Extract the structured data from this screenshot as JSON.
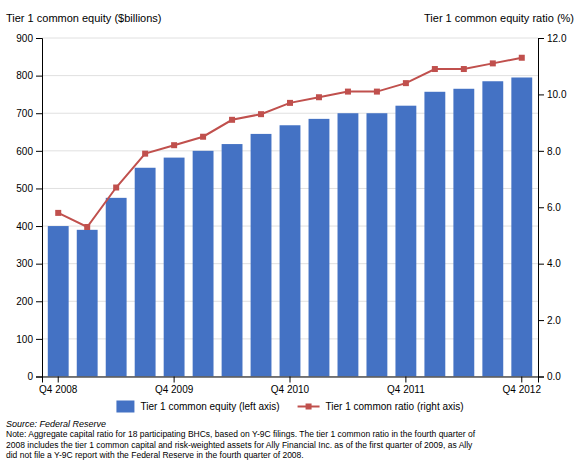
{
  "chart_data": {
    "type": "bar",
    "ylabel": "Tier 1 common equity ($billions)",
    "y2label": "Tier 1 common equity ratio (%)",
    "categories": [
      "Q4 2008",
      null,
      null,
      null,
      "Q4 2009",
      null,
      null,
      null,
      "Q4 2010",
      null,
      null,
      null,
      "Q4 2011",
      null,
      null,
      null,
      "Q4 2012"
    ],
    "series": [
      {
        "name": "Tier 1 common equity (left axis)",
        "type": "bar",
        "color": "#4472C4",
        "values": [
          400,
          390,
          475,
          555,
          582,
          600,
          618,
          645,
          668,
          685,
          700,
          700,
          720,
          757,
          765,
          785,
          795
        ]
      },
      {
        "name": "Tier 1 common ratio (right axis)",
        "type": "line",
        "axis": "y2",
        "color": "#C0504D",
        "marker": "square",
        "values": [
          5.8,
          5.3,
          6.7,
          7.9,
          8.2,
          8.5,
          9.1,
          9.3,
          9.7,
          9.9,
          10.1,
          10.1,
          10.4,
          10.9,
          10.9,
          11.1,
          11.3
        ]
      }
    ],
    "ylim": [
      0,
      900
    ],
    "yticks": [
      0,
      100,
      200,
      300,
      400,
      500,
      600,
      700,
      800,
      900
    ],
    "y2lim": [
      0,
      12.0
    ],
    "y2ticks": [
      {
        "value": 0.0,
        "label": "0.0"
      },
      {
        "value": 2.0,
        "label": "2.0"
      },
      {
        "value": 4.0,
        "label": "4.0"
      },
      {
        "value": 6.0,
        "label": "6.0"
      },
      {
        "value": 8.0,
        "label": "8.0"
      },
      {
        "value": 10.0,
        "label": "10.0"
      },
      {
        "value": 12.0,
        "label": "12.0"
      }
    ],
    "grid": true,
    "legend": "bottom",
    "source": "Source: Federal Reserve",
    "note": "Note: Aggregate capital ratio for 18 participating BHCs, based on Y-9C filings.  The tier 1 common ratio in the fourth quarter of\n2008 includes the tier 1 common capital and risk-weighted assets for Ally Financial Inc. as of the first quarter of 2009, as Ally\ndid not file a Y-9C report with the Federal Reserve in the fourth quarter of 2008."
  }
}
